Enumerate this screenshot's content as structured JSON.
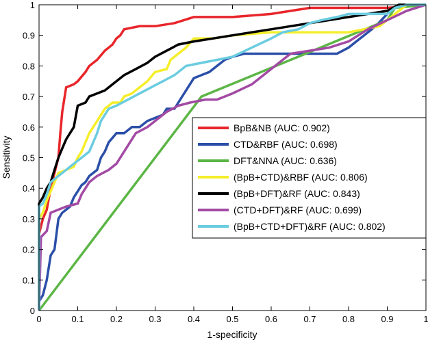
{
  "chart_data": {
    "type": "line",
    "title": "",
    "xlabel": "1-specificity",
    "ylabel": "Sensitivity",
    "xlim": [
      0,
      1
    ],
    "ylim": [
      0,
      1
    ],
    "xticks": [
      "0",
      "0.1",
      "0.2",
      "0.3",
      "0.4",
      "0.5",
      "0.6",
      "0.7",
      "0.8",
      "0.9",
      "1"
    ],
    "yticks": [
      "0",
      "0.1",
      "0.2",
      "0.3",
      "0.4",
      "0.5",
      "0.6",
      "0.7",
      "0.8",
      "0.9",
      "1"
    ],
    "grid": false,
    "legend_position": "lower-right",
    "series": [
      {
        "name": "BpB&NB (AUC: 0.902)",
        "color": "#e8262b",
        "points": [
          [
            0,
            0
          ],
          [
            0,
            0.25
          ],
          [
            0.01,
            0.3
          ],
          [
            0.02,
            0.33
          ],
          [
            0.03,
            0.4
          ],
          [
            0.04,
            0.45
          ],
          [
            0.05,
            0.5
          ],
          [
            0.055,
            0.58
          ],
          [
            0.06,
            0.65
          ],
          [
            0.07,
            0.73
          ],
          [
            0.09,
            0.74
          ],
          [
            0.1,
            0.75
          ],
          [
            0.12,
            0.78
          ],
          [
            0.13,
            0.8
          ],
          [
            0.15,
            0.82
          ],
          [
            0.17,
            0.85
          ],
          [
            0.19,
            0.87
          ],
          [
            0.2,
            0.89
          ],
          [
            0.21,
            0.9
          ],
          [
            0.22,
            0.92
          ],
          [
            0.26,
            0.93
          ],
          [
            0.3,
            0.93
          ],
          [
            0.35,
            0.94
          ],
          [
            0.4,
            0.96
          ],
          [
            0.5,
            0.96
          ],
          [
            0.6,
            0.97
          ],
          [
            0.7,
            0.99
          ],
          [
            0.8,
            0.99
          ],
          [
            0.9,
            0.99
          ],
          [
            1,
            1
          ]
        ]
      },
      {
        "name": "CTD&RBF (AUC: 0.698)",
        "color": "#2b4fa8",
        "points": [
          [
            0,
            0
          ],
          [
            0,
            0.03
          ],
          [
            0.01,
            0.05
          ],
          [
            0.02,
            0.1
          ],
          [
            0.03,
            0.18
          ],
          [
            0.04,
            0.2
          ],
          [
            0.05,
            0.3
          ],
          [
            0.06,
            0.32
          ],
          [
            0.07,
            0.33
          ],
          [
            0.08,
            0.34
          ],
          [
            0.09,
            0.37
          ],
          [
            0.1,
            0.39
          ],
          [
            0.11,
            0.41
          ],
          [
            0.12,
            0.42
          ],
          [
            0.13,
            0.44
          ],
          [
            0.15,
            0.46
          ],
          [
            0.16,
            0.5
          ],
          [
            0.17,
            0.52
          ],
          [
            0.18,
            0.55
          ],
          [
            0.2,
            0.58
          ],
          [
            0.22,
            0.58
          ],
          [
            0.24,
            0.6
          ],
          [
            0.26,
            0.6
          ],
          [
            0.28,
            0.62
          ],
          [
            0.3,
            0.63
          ],
          [
            0.32,
            0.64
          ],
          [
            0.33,
            0.66
          ],
          [
            0.35,
            0.66
          ],
          [
            0.36,
            0.68
          ],
          [
            0.38,
            0.72
          ],
          [
            0.4,
            0.76
          ],
          [
            0.42,
            0.77
          ],
          [
            0.44,
            0.78
          ],
          [
            0.46,
            0.8
          ],
          [
            0.48,
            0.82
          ],
          [
            0.5,
            0.83
          ],
          [
            0.53,
            0.84
          ],
          [
            0.55,
            0.84
          ],
          [
            0.6,
            0.84
          ],
          [
            0.65,
            0.84
          ],
          [
            0.7,
            0.84
          ],
          [
            0.75,
            0.84
          ],
          [
            0.77,
            0.84
          ],
          [
            0.8,
            0.86
          ],
          [
            0.82,
            0.88
          ],
          [
            0.84,
            0.9
          ],
          [
            0.87,
            0.93
          ],
          [
            0.9,
            0.97
          ],
          [
            0.93,
            1
          ],
          [
            1,
            1
          ]
        ]
      },
      {
        "name": "DFT&NNA (AUC: 0.636)",
        "color": "#5cb646",
        "points": [
          [
            0,
            0
          ],
          [
            0.42,
            0.7
          ],
          [
            0.9,
            0.95
          ],
          [
            0.92,
            0.99
          ],
          [
            1,
            1
          ]
        ]
      },
      {
        "name": "(BpB+CTD)&RBF (AUC: 0.806)",
        "color": "#f5ee2a",
        "points": [
          [
            0,
            0
          ],
          [
            0,
            0.3
          ],
          [
            0.01,
            0.32
          ],
          [
            0.02,
            0.36
          ],
          [
            0.03,
            0.39
          ],
          [
            0.04,
            0.42
          ],
          [
            0.05,
            0.45
          ],
          [
            0.07,
            0.46
          ],
          [
            0.09,
            0.47
          ],
          [
            0.1,
            0.5
          ],
          [
            0.11,
            0.52
          ],
          [
            0.12,
            0.55
          ],
          [
            0.13,
            0.58
          ],
          [
            0.14,
            0.6
          ],
          [
            0.15,
            0.62
          ],
          [
            0.16,
            0.64
          ],
          [
            0.17,
            0.66
          ],
          [
            0.19,
            0.68
          ],
          [
            0.21,
            0.68
          ],
          [
            0.22,
            0.7
          ],
          [
            0.24,
            0.71
          ],
          [
            0.26,
            0.73
          ],
          [
            0.28,
            0.75
          ],
          [
            0.3,
            0.78
          ],
          [
            0.33,
            0.79
          ],
          [
            0.34,
            0.82
          ],
          [
            0.36,
            0.84
          ],
          [
            0.38,
            0.86
          ],
          [
            0.4,
            0.89
          ],
          [
            0.45,
            0.89
          ],
          [
            0.5,
            0.9
          ],
          [
            0.6,
            0.91
          ],
          [
            0.7,
            0.91
          ],
          [
            0.8,
            0.91
          ],
          [
            0.88,
            0.93
          ],
          [
            0.92,
            0.97
          ],
          [
            0.95,
            1
          ],
          [
            1,
            1
          ]
        ]
      },
      {
        "name": "(BpB+DFT)&RF (AUC: 0.843)",
        "color": "#000000",
        "points": [
          [
            0,
            0
          ],
          [
            0,
            0.35
          ],
          [
            0.01,
            0.37
          ],
          [
            0.02,
            0.4
          ],
          [
            0.03,
            0.42
          ],
          [
            0.04,
            0.46
          ],
          [
            0.05,
            0.5
          ],
          [
            0.06,
            0.53
          ],
          [
            0.07,
            0.56
          ],
          [
            0.08,
            0.58
          ],
          [
            0.09,
            0.6
          ],
          [
            0.1,
            0.67
          ],
          [
            0.12,
            0.68
          ],
          [
            0.13,
            0.7
          ],
          [
            0.15,
            0.71
          ],
          [
            0.17,
            0.72
          ],
          [
            0.2,
            0.75
          ],
          [
            0.22,
            0.77
          ],
          [
            0.25,
            0.79
          ],
          [
            0.28,
            0.81
          ],
          [
            0.3,
            0.83
          ],
          [
            0.33,
            0.85
          ],
          [
            0.36,
            0.87
          ],
          [
            0.4,
            0.88
          ],
          [
            0.45,
            0.89
          ],
          [
            0.5,
            0.9
          ],
          [
            0.55,
            0.91
          ],
          [
            0.6,
            0.92
          ],
          [
            0.65,
            0.93
          ],
          [
            0.7,
            0.94
          ],
          [
            0.75,
            0.95
          ],
          [
            0.8,
            0.96
          ],
          [
            0.85,
            0.97
          ],
          [
            0.9,
            0.98
          ],
          [
            0.93,
            1
          ],
          [
            1,
            1
          ]
        ]
      },
      {
        "name": "(CTD+DFT)&RF (AUC: 0.699)",
        "color": "#a24aa4",
        "points": [
          [
            0,
            0
          ],
          [
            0.005,
            0.24
          ],
          [
            0.02,
            0.26
          ],
          [
            0.03,
            0.32
          ],
          [
            0.05,
            0.33
          ],
          [
            0.07,
            0.34
          ],
          [
            0.1,
            0.35
          ],
          [
            0.11,
            0.38
          ],
          [
            0.13,
            0.42
          ],
          [
            0.15,
            0.44
          ],
          [
            0.18,
            0.46
          ],
          [
            0.2,
            0.48
          ],
          [
            0.22,
            0.52
          ],
          [
            0.25,
            0.58
          ],
          [
            0.28,
            0.6
          ],
          [
            0.3,
            0.62
          ],
          [
            0.33,
            0.65
          ],
          [
            0.36,
            0.67
          ],
          [
            0.39,
            0.68
          ],
          [
            0.43,
            0.69
          ],
          [
            0.46,
            0.69
          ],
          [
            0.5,
            0.71
          ],
          [
            0.55,
            0.74
          ],
          [
            0.6,
            0.79
          ],
          [
            0.65,
            0.84
          ],
          [
            0.7,
            0.85
          ],
          [
            0.75,
            0.86
          ],
          [
            0.8,
            0.88
          ],
          [
            0.85,
            0.92
          ],
          [
            0.9,
            0.95
          ],
          [
            0.95,
            0.98
          ],
          [
            1,
            1
          ]
        ]
      },
      {
        "name": "(BpB+CTD+DFT)&RF (AUC: 0.802)",
        "color": "#6bcce0",
        "points": [
          [
            0,
            0
          ],
          [
            0,
            0.34
          ],
          [
            0.01,
            0.35
          ],
          [
            0.02,
            0.38
          ],
          [
            0.03,
            0.42
          ],
          [
            0.05,
            0.44
          ],
          [
            0.07,
            0.46
          ],
          [
            0.09,
            0.48
          ],
          [
            0.11,
            0.5
          ],
          [
            0.13,
            0.52
          ],
          [
            0.14,
            0.55
          ],
          [
            0.15,
            0.58
          ],
          [
            0.16,
            0.62
          ],
          [
            0.18,
            0.66
          ],
          [
            0.2,
            0.67
          ],
          [
            0.23,
            0.69
          ],
          [
            0.26,
            0.71
          ],
          [
            0.29,
            0.73
          ],
          [
            0.32,
            0.75
          ],
          [
            0.35,
            0.77
          ],
          [
            0.38,
            0.8
          ],
          [
            0.42,
            0.81
          ],
          [
            0.46,
            0.82
          ],
          [
            0.5,
            0.83
          ],
          [
            0.55,
            0.86
          ],
          [
            0.6,
            0.89
          ],
          [
            0.63,
            0.91
          ],
          [
            0.67,
            0.92
          ],
          [
            0.7,
            0.94
          ],
          [
            0.73,
            0.95
          ],
          [
            0.77,
            0.96
          ],
          [
            0.8,
            0.97
          ],
          [
            0.85,
            0.97
          ],
          [
            0.9,
            0.97
          ],
          [
            0.92,
            0.99
          ],
          [
            0.95,
            1
          ],
          [
            1,
            1
          ]
        ]
      }
    ]
  }
}
